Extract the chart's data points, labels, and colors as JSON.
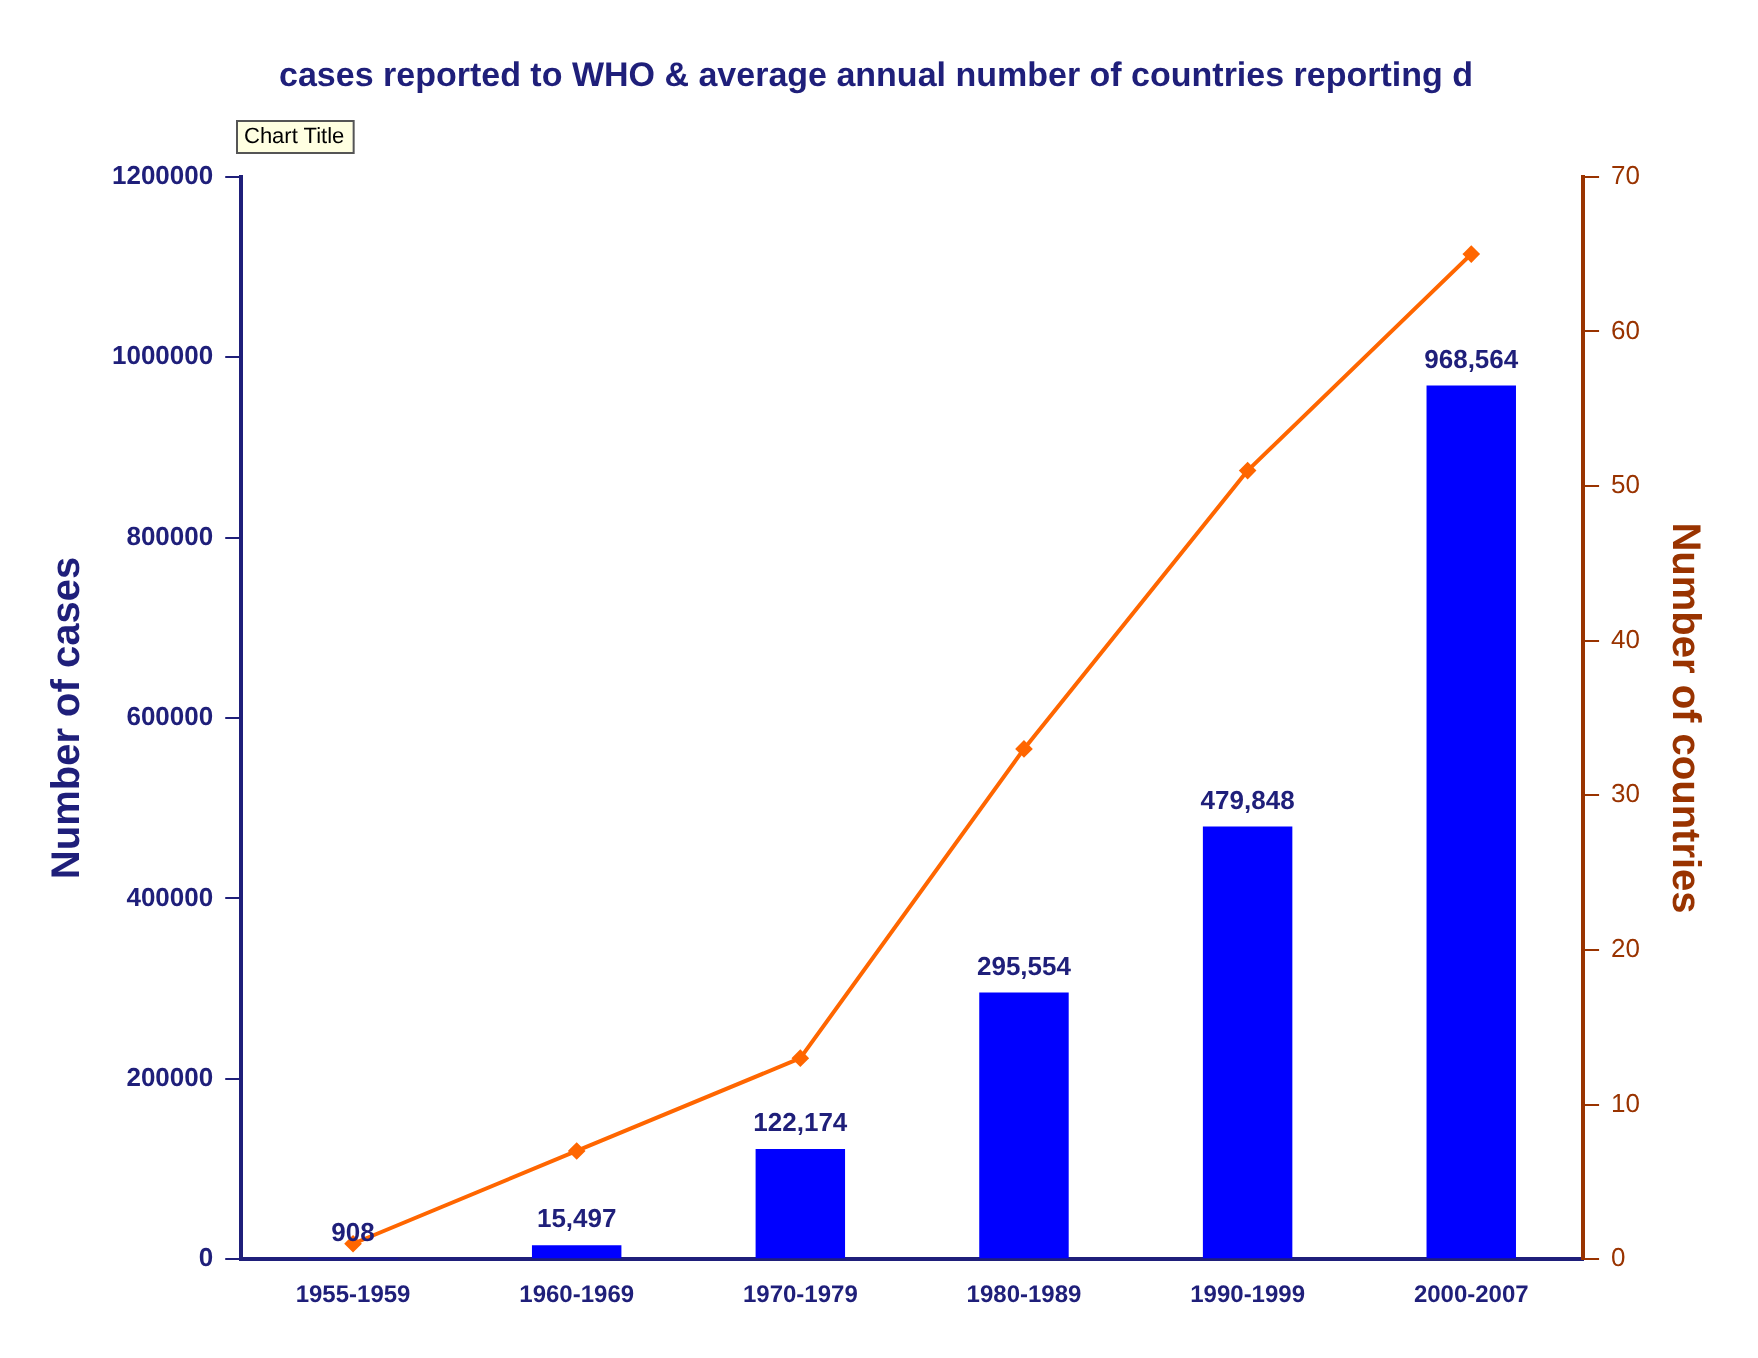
{
  "chart_data": {
    "type": "bar",
    "title": "cases reported to WHO & average annual number of countries reporting d",
    "annotations": [
      "Chart Title"
    ],
    "categories": [
      "1955-1959",
      "1960-1969",
      "1970-1979",
      "1980-1989",
      "1990-1999",
      "2000-2007"
    ],
    "ylabel": "Number of cases",
    "y2label": "Number of countries",
    "ylim": [
      0,
      1200000
    ],
    "yticks": [
      0,
      200000,
      400000,
      600000,
      800000,
      1000000,
      1200000
    ],
    "y2lim": [
      0,
      70
    ],
    "y2ticks": [
      0,
      10,
      20,
      30,
      40,
      50,
      60,
      70
    ],
    "grid": false,
    "legend": false,
    "series": [
      {
        "color": "#0000ff",
        "values": [
          908,
          15497,
          122174,
          295554,
          479848,
          968564
        ],
        "value_labels": [
          "908",
          "15,497",
          "122,174",
          "295,554",
          "479,848",
          "968,564"
        ]
      },
      {
        "type": "line",
        "axis": "y2",
        "color": "#ff6600",
        "marker": "diamond",
        "values": [
          1,
          7,
          13,
          33,
          51,
          65
        ]
      }
    ]
  }
}
